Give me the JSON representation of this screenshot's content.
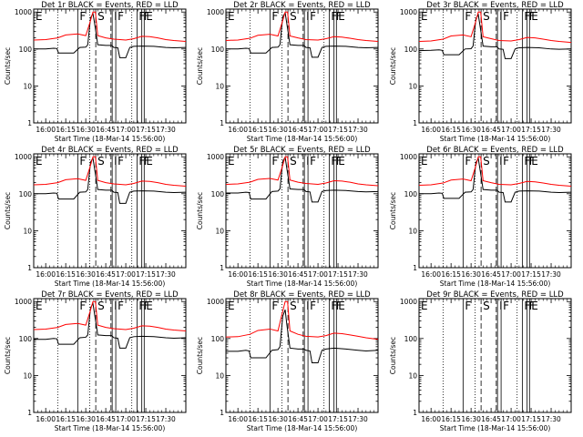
{
  "chart_data": {
    "type": "line",
    "y_scale": "log",
    "ylim": [
      1,
      1200
    ],
    "y_ticks": [
      1,
      10,
      100,
      1000
    ],
    "y_tick_labels": [
      "1",
      "10",
      "100",
      "1000"
    ],
    "ylabel": "Counts/sec",
    "xlabel": "Start Time (18-Mar-14 15:56:00)",
    "x_range_minutes": [
      -3,
      35
    ],
    "x_ticks": [
      0,
      5,
      10,
      15,
      20,
      25,
      30
    ],
    "x_tick_labels": [
      "16:00",
      "16:15",
      "16:30",
      "16:45",
      "17:00",
      "17:15",
      "17:30"
    ],
    "legend": "BLACK = Events, RED = LLD",
    "series_names": [
      "Events",
      "LLD"
    ],
    "series_colors": [
      "#000000",
      "#ff0000"
    ],
    "markers": [
      {
        "label": "E",
        "x": -3.0,
        "style": "solid"
      },
      {
        "label": "",
        "x": 3.0,
        "style": "dotted"
      },
      {
        "label": "F",
        "x": 8.0,
        "style": "solid"
      },
      {
        "label": "",
        "x": 11.0,
        "style": "dotted"
      },
      {
        "label": "S",
        "x": 12.5,
        "style": "dashed"
      },
      {
        "label": "",
        "x": 16.3,
        "style": "dashed"
      },
      {
        "label": "I",
        "x": 16.6,
        "style": "solid"
      },
      {
        "label": "F",
        "x": 17.5,
        "style": "solid"
      },
      {
        "label": "",
        "x": 21.5,
        "style": "dotted"
      },
      {
        "label": "F",
        "x": 22.8,
        "style": "solid"
      },
      {
        "label": "F",
        "x": 24.0,
        "style": "solid"
      },
      {
        "label": "E",
        "x": 24.6,
        "style": "solid"
      }
    ],
    "panels": [
      {
        "title": "Det 1r BLACK = Events, RED = LLD",
        "series": [
          {
            "name": "Events",
            "x": [
              -3,
              0,
              2,
              2.8,
              3.2,
              5,
              7,
              8.5,
              10,
              10.5,
              11.2,
              11.8,
              12.2,
              13,
              15,
              16.5,
              17,
              18,
              18.5,
              20,
              21,
              22,
              24,
              27,
              30,
              32,
              35
            ],
            "values": [
              100,
              100,
              105,
              103,
              78,
              78,
              78,
              110,
              112,
              130,
              700,
              900,
              500,
              130,
              125,
              125,
              110,
              108,
              58,
              58,
              110,
              118,
              120,
              118,
              110,
              108,
              110
            ]
          },
          {
            "name": "LLD",
            "x": [
              -3,
              0,
              3,
              5,
              8,
              10,
              11,
              11.8,
              12.4,
              13,
              15,
              17,
              20,
              22,
              24,
              26,
              28,
              30,
              32,
              35
            ],
            "values": [
              175,
              180,
              200,
              240,
              255,
              230,
              500,
              1000,
              1000,
              230,
              200,
              185,
              175,
              190,
              220,
              215,
              200,
              180,
              170,
              160
            ]
          }
        ]
      },
      {
        "title": "Det 2r BLACK = Events, RED = LLD",
        "series": [
          {
            "name": "Events",
            "x": [
              -3,
              0,
              2,
              2.8,
              3.2,
              5,
              7,
              8.5,
              10,
              10.5,
              11.2,
              11.8,
              12.2,
              13,
              15,
              16.5,
              17,
              18,
              18.5,
              20,
              21,
              22,
              24,
              27,
              30,
              32,
              35
            ],
            "values": [
              100,
              100,
              105,
              103,
              78,
              78,
              78,
              110,
              112,
              130,
              750,
              950,
              500,
              130,
              125,
              125,
              110,
              108,
              60,
              60,
              110,
              118,
              120,
              118,
              110,
              108,
              110
            ]
          },
          {
            "name": "LLD",
            "x": [
              -3,
              0,
              3,
              5,
              8,
              10,
              11,
              11.8,
              12.4,
              13,
              15,
              17,
              20,
              22,
              24,
              26,
              28,
              30,
              32,
              35
            ],
            "values": [
              170,
              175,
              195,
              235,
              250,
              225,
              500,
              1000,
              1000,
              225,
              200,
              180,
              175,
              190,
              215,
              210,
              195,
              180,
              170,
              160
            ]
          }
        ]
      },
      {
        "title": "Det 3r BLACK = Events, RED = LLD",
        "series": [
          {
            "name": "Events",
            "x": [
              -3,
              0,
              2,
              2.8,
              3.2,
              5,
              7,
              8.5,
              10,
              10.5,
              11.2,
              11.8,
              12.2,
              13,
              15,
              16.5,
              17,
              18,
              18.5,
              20,
              21,
              22,
              24,
              27,
              30,
              32,
              35
            ],
            "values": [
              90,
              92,
              95,
              92,
              70,
              70,
              70,
              100,
              102,
              120,
              650,
              850,
              450,
              120,
              115,
              115,
              100,
              98,
              55,
              55,
              100,
              108,
              110,
              108,
              100,
              98,
              100
            ]
          },
          {
            "name": "LLD",
            "x": [
              -3,
              0,
              3,
              5,
              8,
              10,
              11,
              11.8,
              12.4,
              13,
              15,
              17,
              20,
              22,
              24,
              26,
              28,
              30,
              32,
              35
            ],
            "values": [
              160,
              165,
              185,
              225,
              240,
              215,
              480,
              1000,
              1000,
              215,
              190,
              170,
              165,
              180,
              205,
              200,
              185,
              170,
              160,
              150
            ]
          }
        ]
      },
      {
        "title": "Det 4r BLACK = Events, RED = LLD",
        "series": [
          {
            "name": "Events",
            "x": [
              -3,
              0,
              2,
              2.8,
              3.2,
              5,
              7,
              8.5,
              10,
              10.5,
              11.2,
              11.8,
              12.2,
              13,
              15,
              16.5,
              17,
              18,
              18.5,
              20,
              21,
              22,
              24,
              27,
              30,
              32,
              35
            ],
            "values": [
              100,
              100,
              105,
              103,
              72,
              72,
              72,
              110,
              112,
              130,
              720,
              920,
              480,
              130,
              125,
              125,
              110,
              108,
              55,
              55,
              110,
              118,
              120,
              118,
              110,
              108,
              110
            ]
          },
          {
            "name": "LLD",
            "x": [
              -3,
              0,
              3,
              5,
              8,
              10,
              11,
              11.8,
              12.4,
              13,
              15,
              17,
              20,
              22,
              24,
              26,
              28,
              30,
              32,
              35
            ],
            "values": [
              175,
              180,
              200,
              240,
              255,
              230,
              500,
              1000,
              1000,
              230,
              200,
              185,
              175,
              190,
              220,
              215,
              200,
              180,
              170,
              160
            ]
          }
        ]
      },
      {
        "title": "Det 5r BLACK = Events, RED = LLD",
        "series": [
          {
            "name": "Events",
            "x": [
              -3,
              0,
              2,
              2.8,
              3.2,
              5,
              7,
              8.5,
              10,
              10.5,
              11.2,
              11.8,
              12.2,
              13,
              15,
              16.5,
              17,
              18,
              18.5,
              20,
              21,
              22,
              24,
              27,
              30,
              32,
              35
            ],
            "values": [
              105,
              105,
              110,
              108,
              72,
              72,
              72,
              115,
              118,
              135,
              760,
              960,
              500,
              135,
              130,
              130,
              115,
              112,
              60,
              60,
              115,
              122,
              125,
              122,
              115,
              112,
              115
            ]
          },
          {
            "name": "LLD",
            "x": [
              -3,
              0,
              3,
              5,
              8,
              10,
              11,
              11.8,
              12.4,
              13,
              15,
              17,
              20,
              22,
              24,
              26,
              28,
              30,
              32,
              35
            ],
            "values": [
              180,
              185,
              205,
              245,
              260,
              235,
              500,
              1000,
              1000,
              235,
              205,
              190,
              180,
              195,
              225,
              220,
              205,
              185,
              175,
              165
            ]
          }
        ]
      },
      {
        "title": "Det 6r BLACK = Events, RED = LLD",
        "series": [
          {
            "name": "Events",
            "x": [
              -3,
              0,
              2,
              2.8,
              3.2,
              5,
              7,
              8.5,
              10,
              10.5,
              11.2,
              11.8,
              12.2,
              13,
              15,
              16.5,
              17,
              18,
              18.5,
              20,
              21,
              22,
              24,
              27,
              30,
              32,
              35
            ],
            "values": [
              100,
              100,
              105,
              103,
              75,
              75,
              75,
              110,
              112,
              130,
              700,
              900,
              480,
              130,
              125,
              125,
              110,
              108,
              60,
              60,
              110,
              118,
              120,
              118,
              110,
              108,
              110
            ]
          },
          {
            "name": "LLD",
            "x": [
              -3,
              0,
              3,
              5,
              8,
              10,
              11,
              11.8,
              12.4,
              13,
              15,
              17,
              20,
              22,
              24,
              26,
              28,
              30,
              32,
              35
            ],
            "values": [
              170,
              175,
              195,
              235,
              250,
              225,
              490,
              1000,
              1000,
              225,
              200,
              180,
              175,
              190,
              215,
              210,
              195,
              180,
              170,
              160
            ]
          }
        ]
      },
      {
        "title": "Det 7r BLACK = Events, RED = LLD",
        "series": [
          {
            "name": "Events",
            "x": [
              -3,
              0,
              2,
              2.8,
              3.2,
              5,
              7,
              8.5,
              10,
              10.5,
              11.2,
              11.8,
              12.2,
              13,
              15,
              16.5,
              17,
              18,
              18.5,
              20,
              21,
              22,
              24,
              27,
              30,
              32,
              35
            ],
            "values": [
              95,
              95,
              100,
              98,
              70,
              70,
              70,
              105,
              108,
              125,
              680,
              880,
              460,
              125,
              120,
              120,
              105,
              102,
              55,
              55,
              105,
              112,
              115,
              112,
              105,
              102,
              105
            ]
          },
          {
            "name": "LLD",
            "x": [
              -3,
              0,
              3,
              5,
              8,
              10,
              11,
              11.8,
              12.4,
              13,
              15,
              17,
              20,
              22,
              24,
              26,
              28,
              30,
              32,
              35
            ],
            "values": [
              175,
              180,
              200,
              240,
              255,
              230,
              500,
              1000,
              1000,
              230,
              200,
              185,
              175,
              190,
              220,
              215,
              200,
              180,
              170,
              160
            ]
          }
        ]
      },
      {
        "title": "Det 8r BLACK = Events, RED = LLD",
        "series": [
          {
            "name": "Events",
            "x": [
              -3,
              0,
              2,
              2.8,
              3.2,
              5,
              7,
              8.5,
              10,
              10.5,
              11.2,
              11.8,
              12.2,
              13,
              15,
              16.5,
              17,
              18,
              18.5,
              20,
              21,
              22,
              24,
              27,
              30,
              32,
              35
            ],
            "values": [
              45,
              45,
              48,
              46,
              30,
              30,
              30,
              48,
              50,
              60,
              400,
              600,
              250,
              55,
              52,
              52,
              48,
              46,
              22,
              22,
              48,
              52,
              55,
              52,
              48,
              46,
              48
            ]
          },
          {
            "name": "LLD",
            "x": [
              -3,
              0,
              3,
              5,
              8,
              10,
              11,
              11.8,
              12.4,
              13,
              15,
              17,
              20,
              22,
              24,
              26,
              28,
              30,
              32,
              35
            ],
            "values": [
              110,
              112,
              130,
              165,
              180,
              160,
              450,
              1000,
              1000,
              160,
              130,
              115,
              110,
              120,
              140,
              135,
              125,
              115,
              105,
              95
            ]
          }
        ]
      },
      {
        "title": "Det 9r BLACK = Events, RED = LLD",
        "series": []
      }
    ]
  }
}
